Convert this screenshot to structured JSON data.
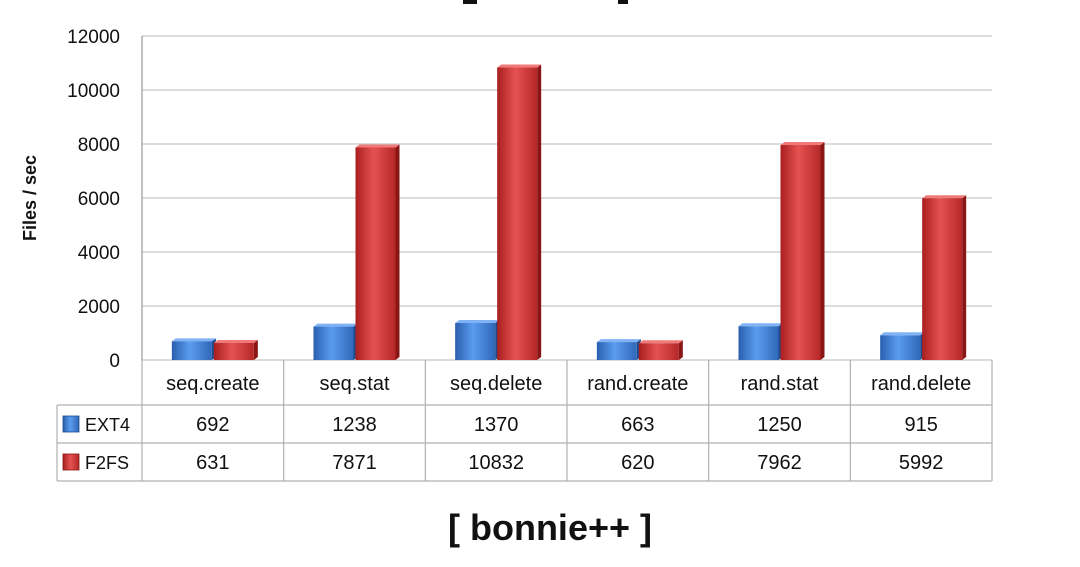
{
  "chart_data": {
    "type": "bar",
    "title": "",
    "xlabel": "",
    "ylabel": "Files / sec",
    "ylim": [
      0,
      12000
    ],
    "yticks": [
      0,
      2000,
      4000,
      6000,
      8000,
      10000,
      12000
    ],
    "grid": true,
    "legend": "data-table",
    "categories": [
      "seq.create",
      "seq.stat",
      "seq.delete",
      "rand.create",
      "rand.stat",
      "rand.delete"
    ],
    "series": [
      {
        "name": "EXT4",
        "color": "#3f7fd6",
        "values": [
          692,
          1238,
          1370,
          663,
          1250,
          915
        ]
      },
      {
        "name": "F2FS",
        "color": "#d33a3a",
        "values": [
          631,
          7871,
          10832,
          620,
          7962,
          5992
        ]
      }
    ]
  },
  "caption": "[ bonnie++ ]"
}
